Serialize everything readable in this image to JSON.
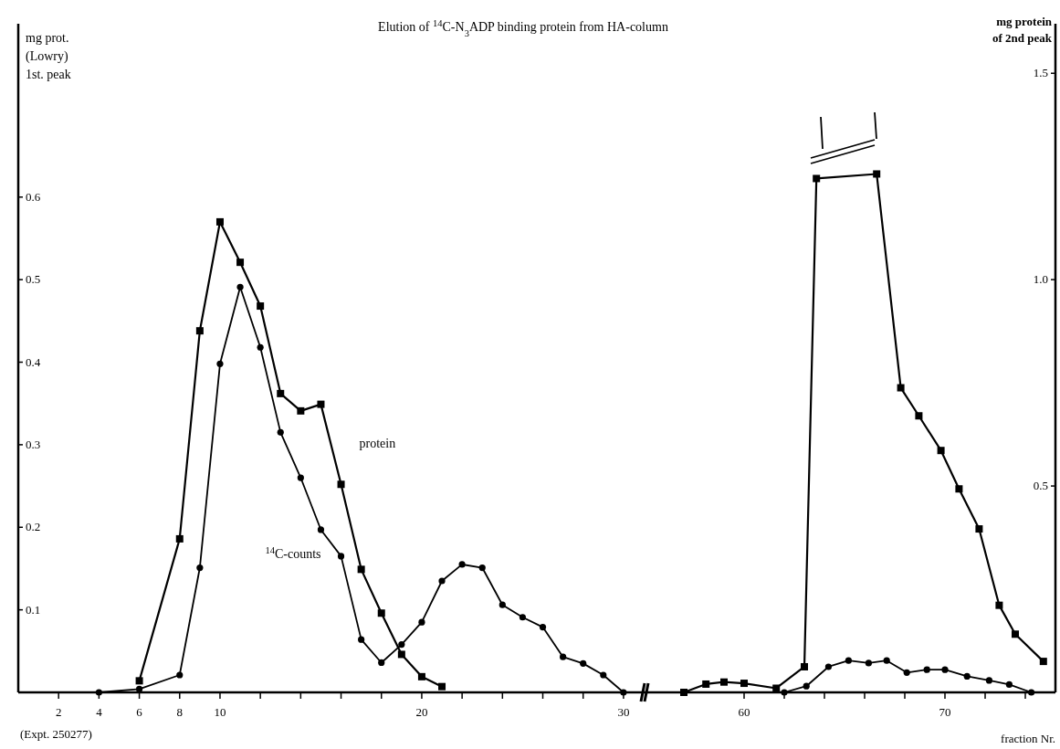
{
  "chart_data": [
    {
      "type": "line",
      "title": "Elution of $^{14}$C-N$_{3}$ADP binding protein from HA-column",
      "ylabel": "mg prot.\n(Lowry)\n1st. peak",
      "annotations": [
        "(Expt. 250277)"
      ],
      "xlim": [
        0,
        31
      ],
      "xticks": [
        2,
        4,
        6,
        8,
        10,
        {
          "value": 12,
          "label": null
        },
        {
          "value": 14,
          "label": null
        },
        {
          "value": 16,
          "label": null
        },
        {
          "value": 18,
          "label": null
        },
        20,
        {
          "value": 22,
          "label": null
        },
        {
          "value": 24,
          "label": null
        },
        {
          "value": 26,
          "label": null
        },
        {
          "value": 28,
          "label": null
        },
        30
      ],
      "ylim": [
        0,
        0.81
      ],
      "yticks": [
        0.1,
        0.2,
        0.3,
        0.4,
        0.5,
        0.6
      ],
      "series": [
        {
          "name": "protein",
          "color": "#000000",
          "marker": "square",
          "x": [
            6,
            8,
            9,
            10,
            11,
            12,
            13,
            14,
            15,
            16,
            17,
            18,
            19,
            20,
            21
          ],
          "values": [
            0.014,
            0.186,
            0.438,
            0.57,
            0.521,
            0.468,
            0.362,
            0.341,
            0.349,
            0.252,
            0.149,
            0.096,
            0.046,
            0.019,
            0.007
          ]
        },
        {
          "name": "$^{14}$C-counts",
          "color": "#000000",
          "marker": "circle",
          "x": [
            4,
            6,
            8,
            9,
            10,
            11,
            12,
            13,
            14,
            15,
            16,
            17,
            18,
            19,
            20,
            21,
            22,
            23,
            24,
            25,
            26,
            27,
            28,
            29,
            30
          ],
          "values": [
            0,
            0.004,
            0.021,
            0.151,
            0.398,
            0.491,
            0.418,
            0.315,
            0.26,
            0.197,
            0.165,
            0.064,
            0.036,
            0.058,
            0.085,
            0.135,
            0.155,
            0.151,
            0.106,
            0.091,
            0.079,
            0.043,
            0.035,
            0.021,
            0
          ]
        }
      ]
    },
    {
      "type": "line",
      "xlabel": "fraction Nr.",
      "y2label": "mg protein\nof 2nd peak",
      "xlim": [
        55,
        75.5
      ],
      "xticks": [
        60,
        {
          "value": 62,
          "label": null
        },
        {
          "value": 64,
          "label": null
        },
        {
          "value": 66,
          "label": null
        },
        {
          "value": 68,
          "label": null
        },
        70,
        {
          "value": 72,
          "label": null
        },
        {
          "value": 74,
          "label": null
        }
      ],
      "y2lim": [
        0,
        1.62
      ],
      "y2ticks": [
        0.5,
        {
          "value": 1,
          "label": "1.0"
        },
        1.5
      ],
      "series": [
        {
          "color": "#000000",
          "marker": "square",
          "axis": "y2",
          "x": [
            57,
            58.1,
            59,
            60,
            61.6,
            63,
            63.6,
            66.6,
            67.8,
            68.7,
            69.8,
            70.7,
            71.7,
            72.7,
            73.5,
            74.9
          ],
          "values": [
            0,
            0.02,
            0.025,
            0.022,
            0.01,
            0.062,
            1.245,
            1.256,
            0.738,
            0.67,
            0.586,
            0.493,
            0.396,
            0.211,
            0.141,
            0.075
          ]
        },
        {
          "color": "#000000",
          "marker": "circle",
          "axis": "y2",
          "x": [
            62,
            63.1,
            64.2,
            65.2,
            66.2,
            67.1,
            68.1,
            69.1,
            70,
            71.1,
            72.2,
            73.2,
            74.3
          ],
          "values": [
            0,
            0.015,
            0.062,
            0.077,
            0.071,
            0.077,
            0.048,
            0.055,
            0.055,
            0.039,
            0.029,
            0.019,
            0
          ]
        }
      ]
    }
  ]
}
